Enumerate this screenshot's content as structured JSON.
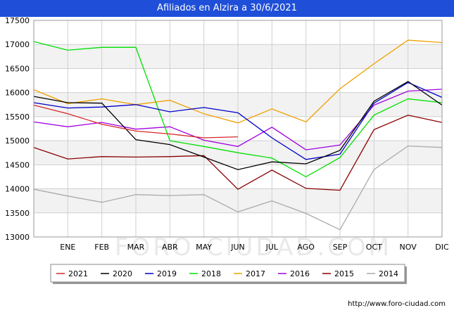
{
  "header": {
    "title": "Afiliados en Alzira a 30/6/2021"
  },
  "footer": {
    "url": "http://www.foro-ciudad.com"
  },
  "watermark": {
    "text": "FORO-CIUDAD.COM"
  },
  "chart_data": {
    "type": "line",
    "title": "Afiliados en Alzira a 30/6/2021",
    "categories": [
      "",
      "ENE",
      "FEB",
      "MAR",
      "ABR",
      "MAY",
      "JUN",
      "JUL",
      "AGO",
      "SEP",
      "OCT",
      "NOV",
      "DIC"
    ],
    "ylim": [
      13000,
      17500
    ],
    "yticks": [
      13000,
      13500,
      14000,
      14500,
      15000,
      15500,
      16000,
      16500,
      17000,
      17500
    ],
    "grid": true,
    "legend_position": "bottom",
    "series": [
      {
        "name": "2021",
        "color": "#d62728",
        "values": [
          15740,
          15560,
          15340,
          15200,
          15140,
          15060,
          15080,
          null,
          null,
          null,
          null,
          null,
          null
        ]
      },
      {
        "name": "2020",
        "color": "#000000",
        "values": [
          15920,
          15790,
          15780,
          15020,
          14920,
          14660,
          14400,
          14560,
          14520,
          14800,
          15820,
          16230,
          15740
        ]
      },
      {
        "name": "2019",
        "color": "#0000c8",
        "values": [
          15790,
          15680,
          15700,
          15750,
          15600,
          15690,
          15580,
          15060,
          14610,
          14720,
          15780,
          16210,
          15900
        ]
      },
      {
        "name": "2018",
        "color": "#00e000",
        "values": [
          17060,
          16880,
          16940,
          16940,
          15000,
          14880,
          14750,
          14640,
          14250,
          14650,
          15530,
          15870,
          15790
        ]
      },
      {
        "name": "2017",
        "color": "#f0a000",
        "values": [
          16060,
          15770,
          15870,
          15750,
          15840,
          15560,
          15370,
          15660,
          15390,
          16080,
          16600,
          17090,
          17040
        ]
      },
      {
        "name": "2016",
        "color": "#a000e0",
        "values": [
          15390,
          15290,
          15380,
          15240,
          15290,
          15010,
          14880,
          15280,
          14810,
          14910,
          15740,
          16030,
          16070
        ]
      },
      {
        "name": "2015",
        "color": "#8b0000",
        "values": [
          14860,
          14620,
          14670,
          14660,
          14670,
          14690,
          13990,
          14390,
          14010,
          13970,
          15230,
          15530,
          15380
        ]
      },
      {
        "name": "2014",
        "color": "#aaaaaa",
        "values": [
          13990,
          13850,
          13720,
          13880,
          13860,
          13880,
          13520,
          13750,
          13490,
          13150,
          14400,
          14890,
          14860
        ]
      }
    ]
  }
}
